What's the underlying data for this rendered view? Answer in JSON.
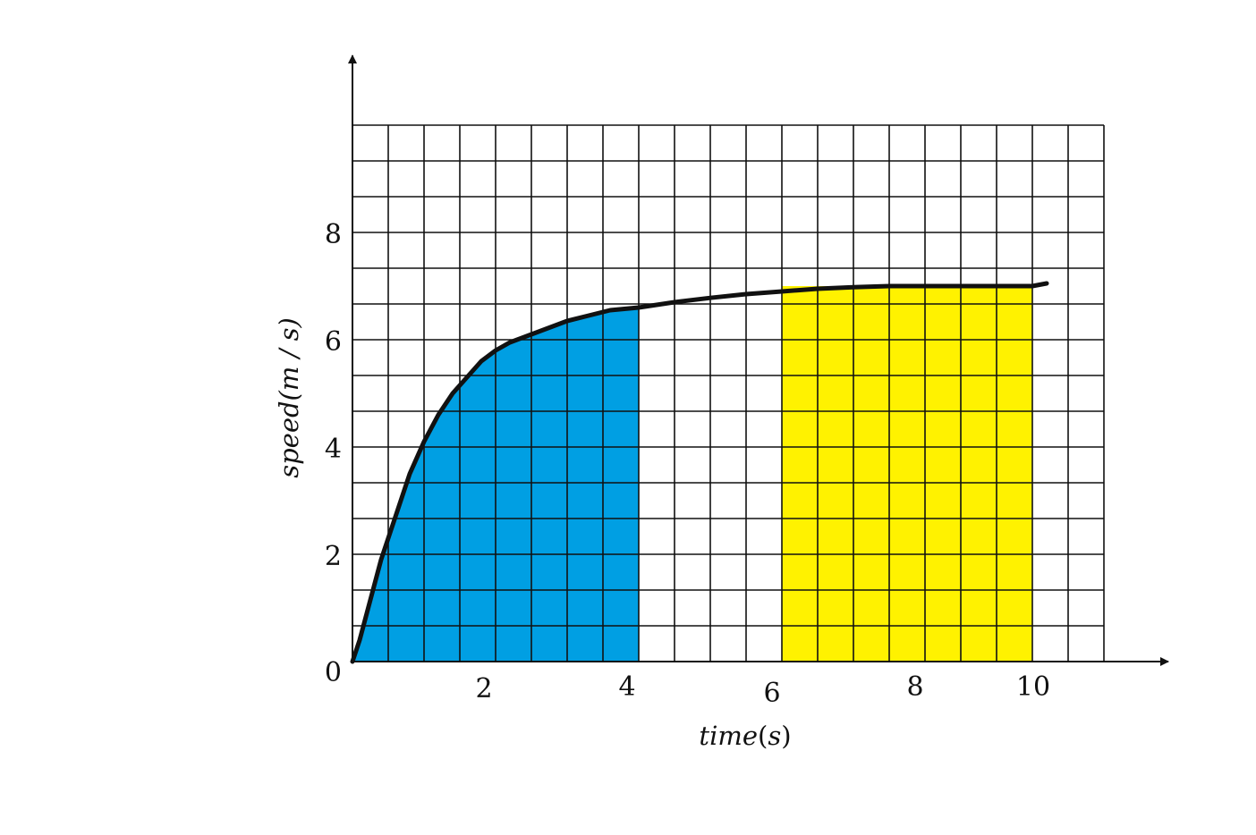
{
  "chart_data": {
    "type": "line",
    "xlabel_parts": {
      "italic": "time",
      "open": "(",
      "unit": "s",
      "close": ")"
    },
    "ylabel": "speed(m / s)",
    "xlim": [
      0,
      10.5
    ],
    "ylim": [
      0,
      10
    ],
    "x_ticks": [
      {
        "value": 0,
        "label": ""
      },
      {
        "value": 2,
        "label": "2"
      },
      {
        "value": 4,
        "label": "4"
      },
      {
        "value": 6,
        "label": "6"
      },
      {
        "value": 8,
        "label": "8"
      },
      {
        "value": 10,
        "label": "10"
      }
    ],
    "y_ticks": [
      {
        "value": 0,
        "label": "0"
      },
      {
        "value": 2,
        "label": "2"
      },
      {
        "value": 4,
        "label": "4"
      },
      {
        "value": 6,
        "label": "6"
      },
      {
        "value": 8,
        "label": "8"
      }
    ],
    "grid": true,
    "grid_step": {
      "x": 0.5,
      "y": 0.667
    },
    "series": [
      {
        "x": [
          0,
          0.1,
          0.2,
          0.3,
          0.4,
          0.5,
          0.6,
          0.8,
          1.0,
          1.2,
          1.4,
          1.6,
          1.8,
          2.0,
          2.2,
          2.4,
          2.6,
          2.8,
          3.0,
          3.3,
          3.6,
          4.0,
          4.5,
          5.0,
          5.5,
          6.0,
          6.5,
          7.0,
          7.5,
          8.0,
          8.5,
          9.0,
          9.5,
          9.7
        ],
        "y": [
          0,
          0.4,
          0.9,
          1.4,
          1.9,
          2.3,
          2.7,
          3.5,
          4.1,
          4.6,
          5.0,
          5.3,
          5.6,
          5.8,
          5.95,
          6.05,
          6.15,
          6.25,
          6.35,
          6.45,
          6.55,
          6.6,
          6.7,
          6.78,
          6.85,
          6.9,
          6.95,
          6.98,
          7.0,
          7.0,
          7.0,
          7.0,
          7.0,
          7.05
        ]
      }
    ],
    "shaded_regions": [
      {
        "from": 0,
        "to": 4,
        "under": "curve",
        "color": "#009fe3"
      },
      {
        "from": 6,
        "to": 9.5,
        "top": 7,
        "color": "#fff200"
      }
    ],
    "colors": {
      "curve": "#111111",
      "grid": "#111111"
    }
  }
}
